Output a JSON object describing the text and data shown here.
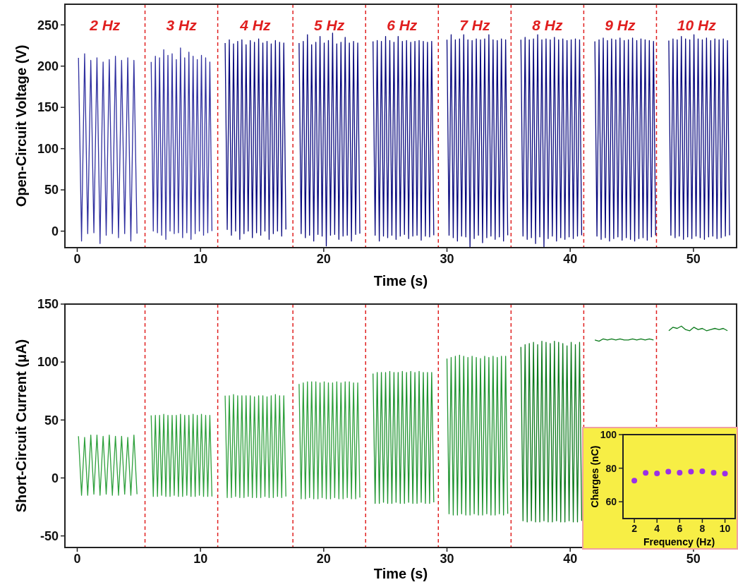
{
  "chart_data": [
    {
      "type": "line",
      "ylabel": "Open-Circuit Voltage (V)",
      "xlabel": "Time (s)",
      "xlim": [
        -1,
        53.5
      ],
      "ylim": [
        -20,
        275
      ],
      "xticks": [
        0,
        10,
        20,
        30,
        40,
        50
      ],
      "yticks": [
        0,
        50,
        100,
        150,
        200,
        250
      ],
      "annotations": [
        "2 Hz",
        "3 Hz",
        "4 Hz",
        "5 Hz",
        "6 Hz",
        "7 Hz",
        "8 Hz",
        "9 Hz",
        "10 Hz"
      ],
      "ref_lines": [
        {
          "axis": "x",
          "value": 5.5,
          "color": "#e02020",
          "line_style": "dashed"
        },
        {
          "axis": "x",
          "value": 11.4,
          "color": "#e02020",
          "line_style": "dashed"
        },
        {
          "axis": "x",
          "value": 17.5,
          "color": "#e02020",
          "line_style": "dashed"
        },
        {
          "axis": "x",
          "value": 23.4,
          "color": "#e02020",
          "line_style": "dashed"
        },
        {
          "axis": "x",
          "value": 29.3,
          "color": "#e02020",
          "line_style": "dashed"
        },
        {
          "axis": "x",
          "value": 35.2,
          "color": "#e02020",
          "line_style": "dashed"
        },
        {
          "axis": "x",
          "value": 41.1,
          "color": "#e02020",
          "line_style": "dashed"
        },
        {
          "axis": "x",
          "value": 47.0,
          "color": "#e02020",
          "line_style": "dashed"
        }
      ],
      "series": [
        {
          "color": "#3030a0",
          "x": [
            0.1,
            0.35,
            0.6,
            0.85,
            1.1,
            1.35,
            1.6,
            1.85,
            2.1,
            2.35,
            2.6,
            2.85,
            3.1,
            3.35,
            3.6,
            3.85,
            4.1,
            4.35,
            4.6,
            4.85
          ],
          "values": [
            210,
            -12,
            215,
            -3,
            207,
            -2,
            210,
            -15,
            205,
            -5,
            208,
            -3,
            212,
            -8,
            207,
            -3,
            210,
            -12,
            207,
            -3
          ]
        },
        {
          "color": "#3030a0",
          "x": [
            6,
            6.17,
            6.34,
            6.51,
            6.68,
            6.85,
            7.02,
            7.19,
            7.36,
            7.53,
            7.7,
            7.87,
            8.04,
            8.21,
            8.38,
            8.55,
            8.72,
            8.89,
            9.06,
            9.23,
            9.4,
            9.57,
            9.74,
            9.91,
            10.08,
            10.25,
            10.42,
            10.59,
            10.76,
            10.93
          ],
          "values": [
            205,
            0,
            212,
            -2,
            210,
            -5,
            220,
            -10,
            213,
            0,
            215,
            -3,
            208,
            -2,
            222,
            -8,
            210,
            -2,
            217,
            -10,
            212,
            -3,
            208,
            0,
            213,
            -5,
            210,
            -2,
            205,
            0
          ]
        },
        {
          "color": "#08087e",
          "x": [
            12,
            12.17,
            12.34,
            12.51,
            12.68,
            12.85,
            13.02,
            13.19,
            13.36,
            13.53,
            13.7,
            13.87,
            14.04,
            14.21,
            14.38,
            14.55,
            14.72,
            14.89,
            15.06,
            15.23,
            15.4,
            15.57,
            15.74,
            15.91,
            16.08,
            16.25,
            16.42,
            16.59,
            16.76,
            16.93
          ],
          "values": [
            228,
            2,
            232,
            -5,
            227,
            0,
            230,
            -10,
            232,
            -3,
            226,
            0,
            231,
            -8,
            229,
            -2,
            233,
            -5,
            228,
            0,
            230,
            -10,
            227,
            -3,
            231,
            0,
            229,
            -6,
            228,
            2
          ]
        },
        {
          "color": "#08087e",
          "x": [
            18,
            18.17,
            18.34,
            18.51,
            18.68,
            18.85,
            19.02,
            19.19,
            19.36,
            19.53,
            19.7,
            19.87,
            20.04,
            20.21,
            20.38,
            20.55,
            20.72,
            20.89,
            21.06,
            21.23,
            21.4,
            21.57,
            21.74,
            21.91,
            22.08,
            22.25,
            22.42,
            22.59,
            22.76,
            22.93
          ],
          "values": [
            228,
            -3,
            230,
            -8,
            238,
            -5,
            226,
            -12,
            229,
            -4,
            236,
            -6,
            228,
            -18,
            231,
            -5,
            240,
            -4,
            227,
            -10,
            229,
            -6,
            235,
            -5,
            228,
            -12,
            230,
            -4,
            228,
            -3
          ]
        },
        {
          "color": "#08087e",
          "x": [
            24,
            24.17,
            24.34,
            24.51,
            24.68,
            24.85,
            25.02,
            25.19,
            25.36,
            25.53,
            25.7,
            25.87,
            26.04,
            26.21,
            26.38,
            26.55,
            26.72,
            26.89,
            27.06,
            27.23,
            27.4,
            27.57,
            27.74,
            27.91,
            28.08,
            28.25,
            28.42,
            28.59,
            28.76,
            28.93
          ],
          "values": [
            230,
            -5,
            231,
            -12,
            230,
            -6,
            236,
            -8,
            231,
            -5,
            229,
            -10,
            236,
            -6,
            230,
            -4,
            231,
            -9,
            229,
            -6,
            230,
            -5,
            231,
            -11,
            230,
            -6,
            229,
            -7,
            230,
            -5
          ]
        },
        {
          "color": "#08087e",
          "x": [
            30,
            30.17,
            30.34,
            30.51,
            30.68,
            30.85,
            31.02,
            31.19,
            31.36,
            31.53,
            31.7,
            31.87,
            32.04,
            32.21,
            32.38,
            32.55,
            32.72,
            32.89,
            33.06,
            33.23,
            33.4,
            33.57,
            33.74,
            33.91,
            34.08,
            34.25,
            34.42,
            34.59,
            34.76,
            34.93
          ],
          "values": [
            232,
            -5,
            238,
            -8,
            232,
            -12,
            233,
            -6,
            238,
            -7,
            232,
            -20,
            231,
            -9,
            233,
            -5,
            232,
            -14,
            233,
            -8,
            238,
            -6,
            232,
            -10,
            231,
            -7,
            233,
            -12,
            232,
            -5
          ]
        },
        {
          "color": "#08087e",
          "x": [
            36,
            36.17,
            36.34,
            36.51,
            36.68,
            36.85,
            37.02,
            37.19,
            37.36,
            37.53,
            37.7,
            37.87,
            38.04,
            38.21,
            38.38,
            38.55,
            38.72,
            38.89,
            39.06,
            39.23,
            39.4,
            39.57,
            39.74,
            39.91,
            40.08,
            40.25,
            40.42,
            40.59,
            40.76,
            40.93
          ],
          "values": [
            232,
            -6,
            235,
            -10,
            232,
            -8,
            233,
            -15,
            238,
            -7,
            232,
            -20,
            233,
            -9,
            232,
            -6,
            235,
            -12,
            232,
            -8,
            233,
            -10,
            231,
            -7,
            232,
            -9,
            233,
            -6,
            232,
            -5
          ]
        },
        {
          "color": "#08087e",
          "x": [
            42,
            42.17,
            42.34,
            42.51,
            42.68,
            42.85,
            43.02,
            43.19,
            43.36,
            43.53,
            43.7,
            43.87,
            44.04,
            44.21,
            44.38,
            44.55,
            44.72,
            44.89,
            45.06,
            45.23,
            45.4,
            45.57,
            45.74,
            45.91,
            46.08,
            46.25,
            46.42,
            46.59,
            46.76,
            46.93
          ],
          "values": [
            230,
            -6,
            232,
            -10,
            234,
            -8,
            231,
            -12,
            233,
            -9,
            232,
            -7,
            234,
            -11,
            231,
            -8,
            232,
            -10,
            234,
            -12,
            231,
            -9,
            233,
            -8,
            232,
            -11,
            231,
            -7,
            230,
            -5
          ]
        },
        {
          "color": "#08087e",
          "x": [
            48,
            48.17,
            48.34,
            48.51,
            48.68,
            48.85,
            49.02,
            49.19,
            49.36,
            49.53,
            49.7,
            49.87,
            50.04,
            50.21,
            50.38,
            50.55,
            50.72,
            50.89,
            51.06,
            51.23,
            51.4,
            51.57,
            51.74,
            51.91,
            52.08,
            52.25,
            52.42,
            52.59,
            52.76,
            52.93
          ],
          "values": [
            231,
            -5,
            233,
            -8,
            232,
            -6,
            236,
            -10,
            233,
            -7,
            232,
            -9,
            238,
            -6,
            233,
            -8,
            232,
            -10,
            234,
            -7,
            231,
            -6,
            233,
            -9,
            232,
            -8,
            233,
            -6,
            231,
            -5
          ]
        }
      ]
    },
    {
      "type": "line",
      "ylabel": "Short-Circuit Current (μA)",
      "xlabel": "Time (s)",
      "xlim": [
        -1,
        53.5
      ],
      "ylim": [
        -60,
        150
      ],
      "xticks": [
        0,
        10,
        20,
        30,
        40,
        50
      ],
      "yticks": [
        -50,
        0,
        50,
        100,
        150
      ],
      "ref_lines": [
        {
          "axis": "x",
          "value": 5.5,
          "color": "#e02020",
          "line_style": "dashed"
        },
        {
          "axis": "x",
          "value": 11.4,
          "color": "#e02020",
          "line_style": "dashed"
        },
        {
          "axis": "x",
          "value": 17.5,
          "color": "#e02020",
          "line_style": "dashed"
        },
        {
          "axis": "x",
          "value": 23.4,
          "color": "#e02020",
          "line_style": "dashed"
        },
        {
          "axis": "x",
          "value": 29.3,
          "color": "#e02020",
          "line_style": "dashed"
        },
        {
          "axis": "x",
          "value": 35.2,
          "color": "#e02020",
          "line_style": "dashed"
        },
        {
          "axis": "x",
          "value": 41.1,
          "color": "#e02020",
          "line_style": "dashed"
        },
        {
          "axis": "x",
          "value": 47.0,
          "color": "#e02020",
          "line_style": "dashed"
        }
      ],
      "series": [
        {
          "color": "#2ea03c",
          "x": [
            0.1,
            0.35,
            0.6,
            0.85,
            1.1,
            1.35,
            1.6,
            1.85,
            2.1,
            2.35,
            2.6,
            2.85,
            3.1,
            3.35,
            3.6,
            3.85,
            4.1,
            4.35,
            4.6,
            4.85
          ],
          "values": [
            36,
            -15,
            35,
            -15,
            37,
            -14,
            37,
            -15,
            36,
            -14,
            37,
            -15,
            36,
            -15,
            36,
            -14,
            35,
            -15,
            37,
            -14
          ]
        },
        {
          "color": "#2ea03c",
          "x": [
            6,
            6.17,
            6.34,
            6.51,
            6.68,
            6.85,
            7.02,
            7.19,
            7.36,
            7.53,
            7.7,
            7.87,
            8.04,
            8.21,
            8.38,
            8.55,
            8.72,
            8.89,
            9.06,
            9.23,
            9.4,
            9.57,
            9.74,
            9.91,
            10.08,
            10.25,
            10.42,
            10.59,
            10.76,
            10.93
          ],
          "values": [
            54,
            -16,
            54,
            -16,
            54,
            -15,
            55,
            -16,
            54,
            -16,
            54,
            -15,
            54,
            -16,
            55,
            -16,
            54,
            -15,
            54,
            -16,
            55,
            -16,
            54,
            -15,
            55,
            -16,
            54,
            -16,
            54,
            -16
          ]
        },
        {
          "color": "#2ea03c",
          "x": [
            12,
            12.17,
            12.34,
            12.51,
            12.68,
            12.85,
            13.02,
            13.19,
            13.36,
            13.53,
            13.7,
            13.87,
            14.04,
            14.21,
            14.38,
            14.55,
            14.72,
            14.89,
            15.06,
            15.23,
            15.4,
            15.57,
            15.74,
            15.91,
            16.08,
            16.25,
            16.42,
            16.59,
            16.76,
            16.93
          ],
          "values": [
            71,
            -17,
            71,
            -17,
            72,
            -16,
            71,
            -17,
            71,
            -17,
            71,
            -16,
            71,
            -17,
            70,
            -17,
            71,
            -17,
            71,
            -16,
            70,
            -17,
            71,
            -17,
            72,
            -16,
            71,
            -17,
            71,
            -16
          ]
        },
        {
          "color": "#2ea03c",
          "x": [
            18,
            18.17,
            18.34,
            18.51,
            18.68,
            18.85,
            19.02,
            19.19,
            19.36,
            19.53,
            19.7,
            19.87,
            20.04,
            20.21,
            20.38,
            20.55,
            20.72,
            20.89,
            21.06,
            21.23,
            21.4,
            21.57,
            21.74,
            21.91,
            22.08,
            22.25,
            22.42,
            22.59,
            22.76,
            22.93
          ],
          "values": [
            81,
            -18,
            82,
            -18,
            83,
            -17,
            83,
            -18,
            83,
            -18,
            82,
            -17,
            83,
            -18,
            82,
            -18,
            82,
            -17,
            83,
            -18,
            82,
            -18,
            83,
            -17,
            83,
            -18,
            82,
            -18,
            82,
            -17
          ]
        },
        {
          "color": "#1f9430",
          "x": [
            24,
            24.17,
            24.34,
            24.51,
            24.68,
            24.85,
            25.02,
            25.19,
            25.36,
            25.53,
            25.7,
            25.87,
            26.04,
            26.21,
            26.38,
            26.55,
            26.72,
            26.89,
            27.06,
            27.23,
            27.4,
            27.57,
            27.74,
            27.91,
            28.08,
            28.25,
            28.42,
            28.59,
            28.76,
            28.93
          ],
          "values": [
            90,
            -22,
            91,
            -22,
            91,
            -21,
            91,
            -22,
            92,
            -22,
            91,
            -21,
            91,
            -22,
            92,
            -22,
            91,
            -21,
            92,
            -22,
            91,
            -22,
            92,
            -21,
            91,
            -22,
            91,
            -22,
            91,
            -21
          ]
        },
        {
          "color": "#1f9430",
          "x": [
            30,
            30.17,
            30.34,
            30.51,
            30.68,
            30.85,
            31.02,
            31.19,
            31.36,
            31.53,
            31.7,
            31.87,
            32.04,
            32.21,
            32.38,
            32.55,
            32.72,
            32.89,
            33.06,
            33.23,
            33.4,
            33.57,
            33.74,
            33.91,
            34.08,
            34.25,
            34.42,
            34.59,
            34.76,
            34.93
          ],
          "values": [
            103,
            -31,
            104,
            -32,
            105,
            -32,
            106,
            -31,
            105,
            -32,
            104,
            -32,
            105,
            -31,
            104,
            -32,
            103,
            -32,
            105,
            -31,
            104,
            -32,
            105,
            -32,
            104,
            -31,
            105,
            -32,
            105,
            -31
          ]
        },
        {
          "color": "#0b7a1b",
          "x": [
            36,
            36.17,
            36.34,
            36.51,
            36.68,
            36.85,
            37.02,
            37.19,
            37.36,
            37.53,
            37.7,
            37.87,
            38.04,
            38.21,
            38.38,
            38.55,
            38.72,
            38.89,
            39.06,
            39.23,
            39.4,
            39.57,
            39.74,
            39.91,
            40.08,
            40.25,
            40.42,
            40.59,
            40.76,
            40.93
          ],
          "values": [
            113,
            -37,
            115,
            -38,
            116,
            -37,
            117,
            -38,
            115,
            -38,
            118,
            -37,
            117,
            -38,
            116,
            -38,
            118,
            -37,
            117,
            -38,
            116,
            -38,
            114,
            -37,
            117,
            -38,
            115,
            -38,
            117,
            -37
          ]
        },
        {
          "color": "#0b7a1b",
          "x": [
            42,
            42.34,
            42.68,
            43.02,
            43.36,
            43.7,
            44.04,
            44.38,
            44.72,
            45.06,
            45.4,
            45.74,
            46.08,
            46.42,
            46.76
          ],
          "values": [
            119,
            118,
            120,
            119,
            120,
            119,
            120,
            119,
            119,
            120,
            119,
            120,
            119,
            120,
            119
          ]
        },
        {
          "color": "#0b7a1b",
          "x": [
            48,
            48.34,
            48.68,
            49.02,
            49.36,
            49.7,
            50.04,
            50.38,
            50.72,
            51.06,
            51.4,
            51.74,
            52.08,
            52.42,
            52.76
          ],
          "values": [
            127,
            130,
            129,
            131,
            128,
            127,
            130,
            128,
            129,
            127,
            128,
            129,
            128,
            129,
            127
          ]
        }
      ]
    },
    {
      "type": "scatter",
      "ylabel": "Charges (nC)",
      "xlabel": "Frequency (Hz)",
      "xlim": [
        1,
        10.9
      ],
      "ylim": [
        50,
        100
      ],
      "xticks": [
        2,
        4,
        6,
        8,
        10
      ],
      "yticks": [
        60,
        80,
        100
      ],
      "marker": "circle",
      "series": [
        {
          "color": "#9b30e6",
          "x": [
            2,
            3,
            4,
            5,
            6,
            7,
            8,
            9,
            10
          ],
          "values": [
            72.6,
            77.2,
            76.9,
            77.9,
            77.3,
            77.9,
            78.2,
            77.3,
            76.8
          ]
        }
      ]
    }
  ]
}
